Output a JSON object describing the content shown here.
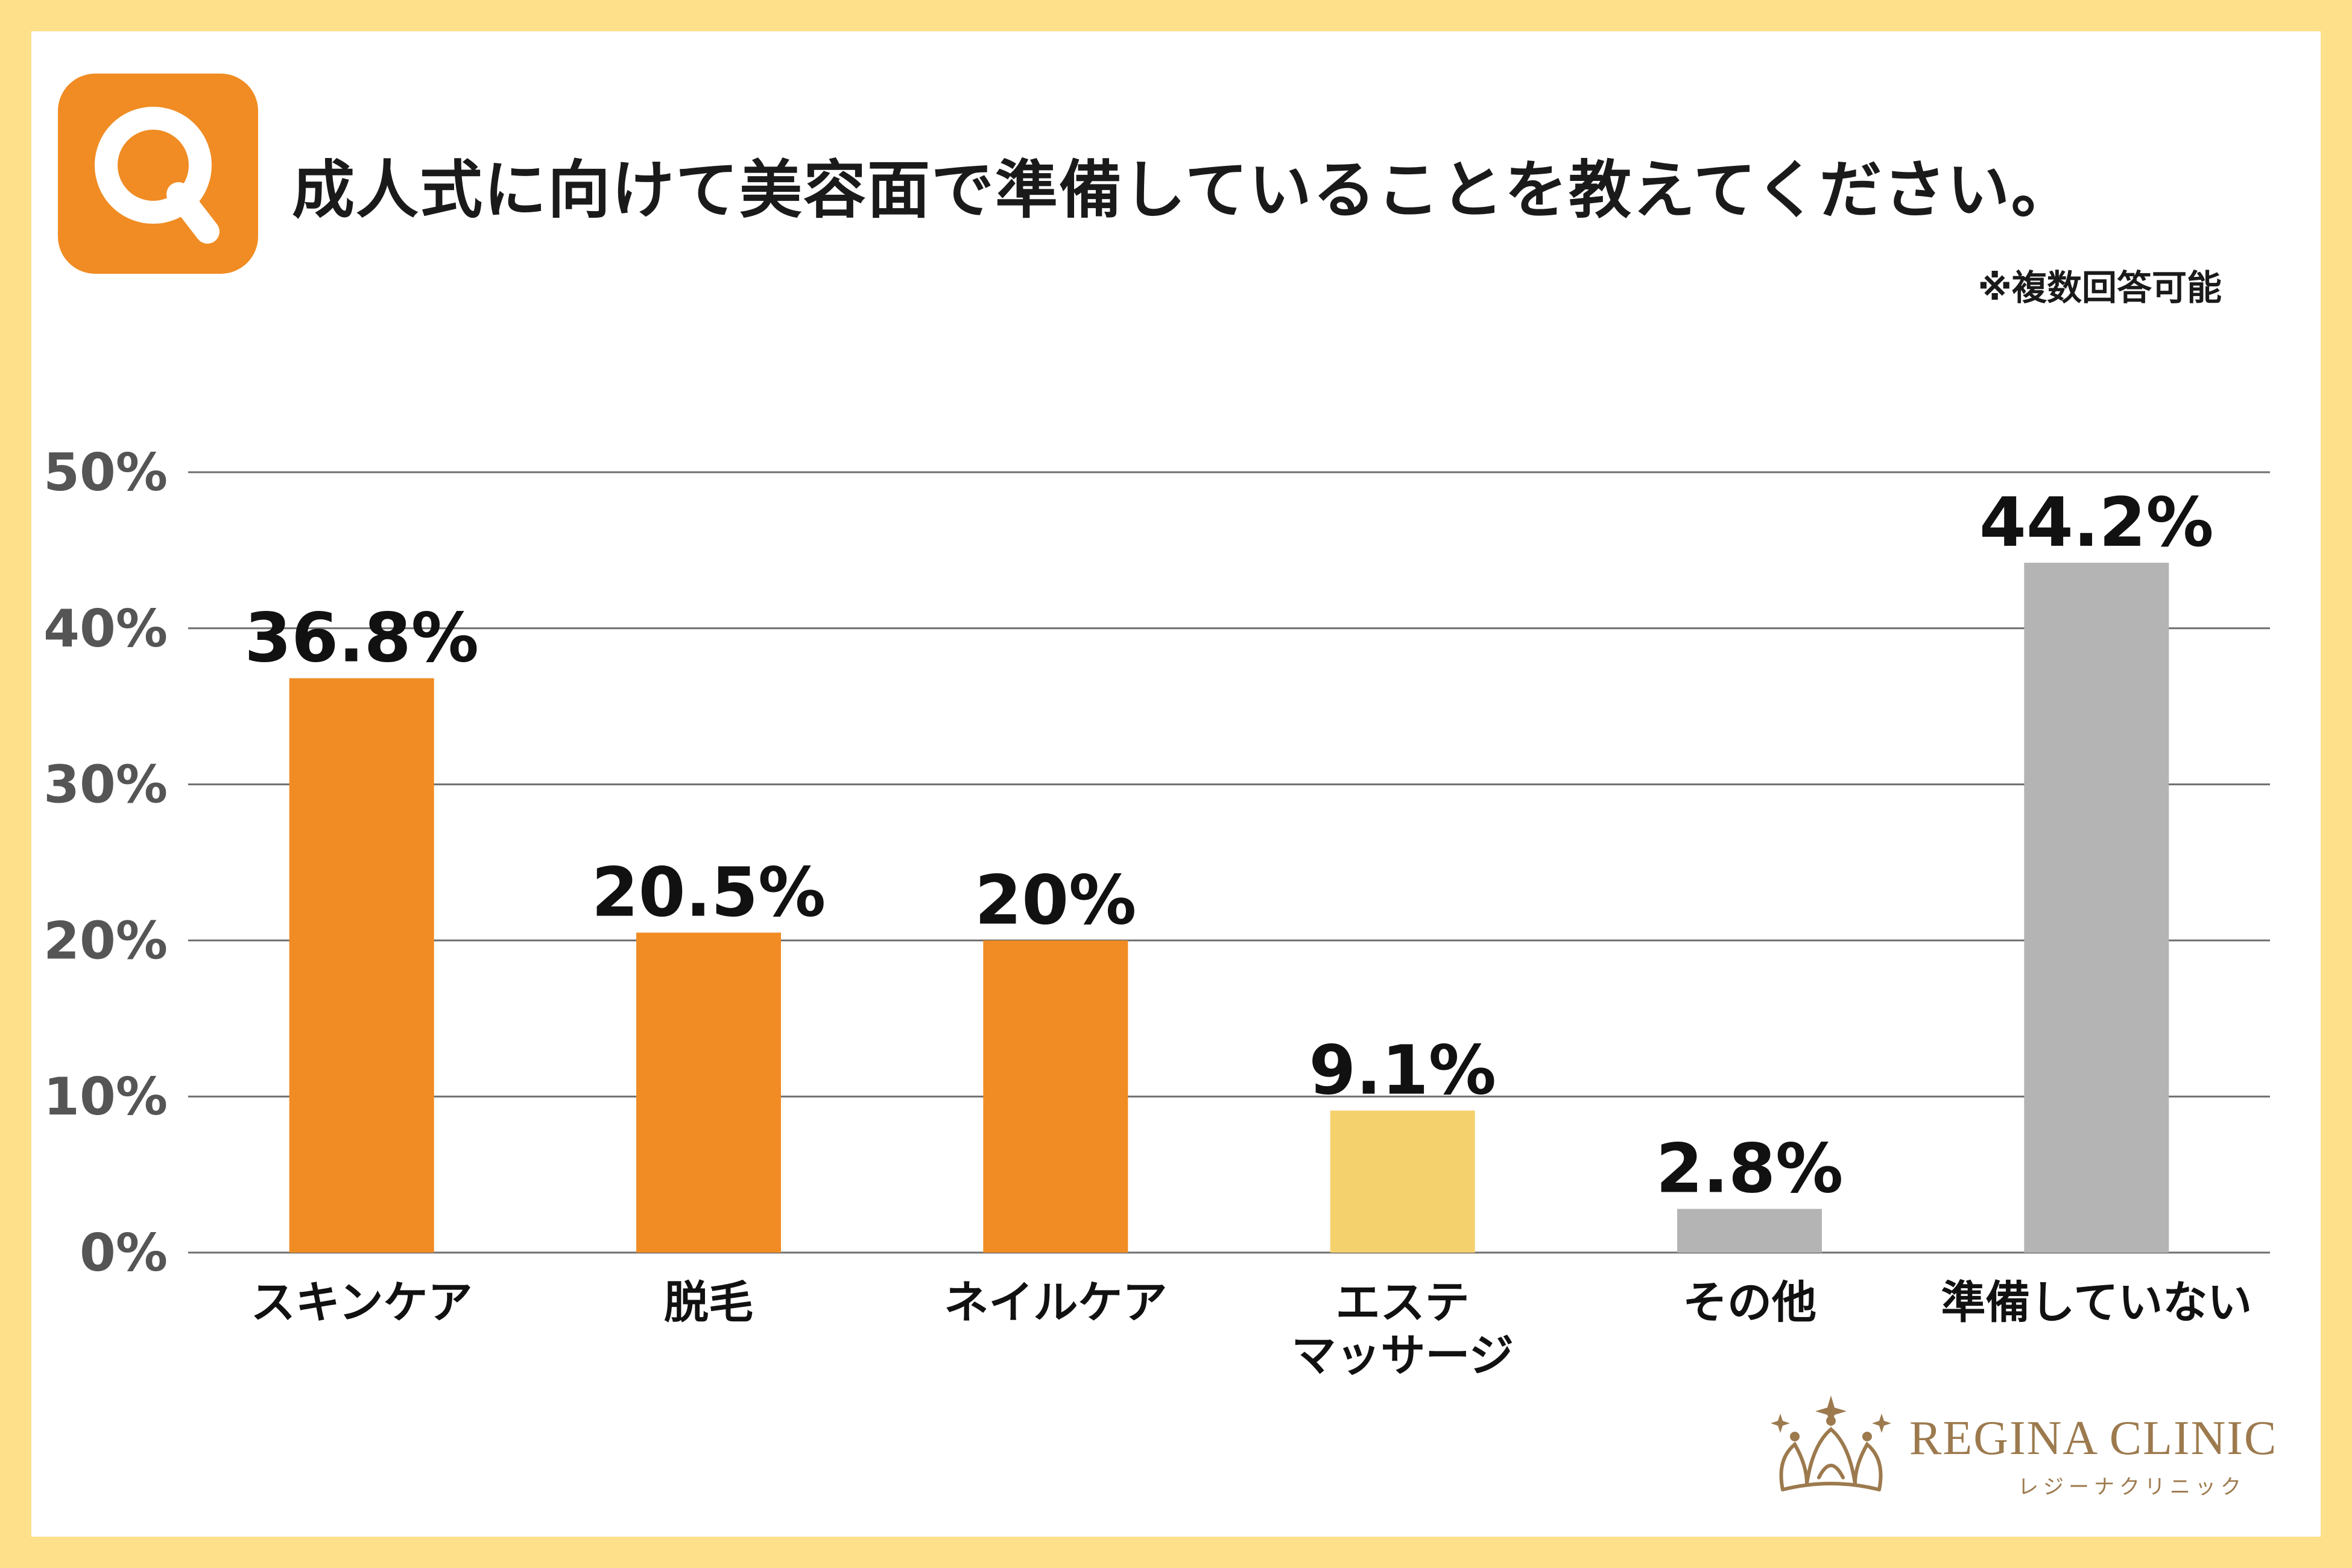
{
  "question": "成人式に向けて美容面で準備していることを教えてください。",
  "note": "※複数回答可能",
  "badge_letter": "Q",
  "logo": {
    "name": "REGINA CLINIC",
    "kana": "レジーナクリニック"
  },
  "colors": {
    "background": "#FFE08A",
    "accent_orange": "#F08C23",
    "yellow": "#F5D16E",
    "gray": "#B4B4B4",
    "logo_gold": "#9C7A4E"
  },
  "chart_data": {
    "type": "bar",
    "categories": [
      [
        "スキンケア"
      ],
      [
        "脱毛"
      ],
      [
        "ネイルケア"
      ],
      [
        "エステ",
        "マッサージ"
      ],
      [
        "その他"
      ],
      [
        "準備していない"
      ]
    ],
    "values": [
      36.8,
      20.5,
      20,
      9.1,
      2.8,
      44.2
    ],
    "value_labels": [
      "36.8%",
      "20.5%",
      "20%",
      "9.1%",
      "2.8%",
      "44.2%"
    ],
    "bar_colors": [
      "#F08C23",
      "#F08C23",
      "#F08C23",
      "#F5D16E",
      "#B4B4B4",
      "#B4B4B4"
    ],
    "ylim": [
      0,
      50
    ],
    "yticks": [
      0,
      10,
      20,
      30,
      40,
      50
    ],
    "ytick_labels": [
      "0%",
      "10%",
      "20%",
      "30%",
      "40%",
      "50%"
    ],
    "grid": true,
    "title": "",
    "xlabel": "",
    "ylabel": ""
  }
}
